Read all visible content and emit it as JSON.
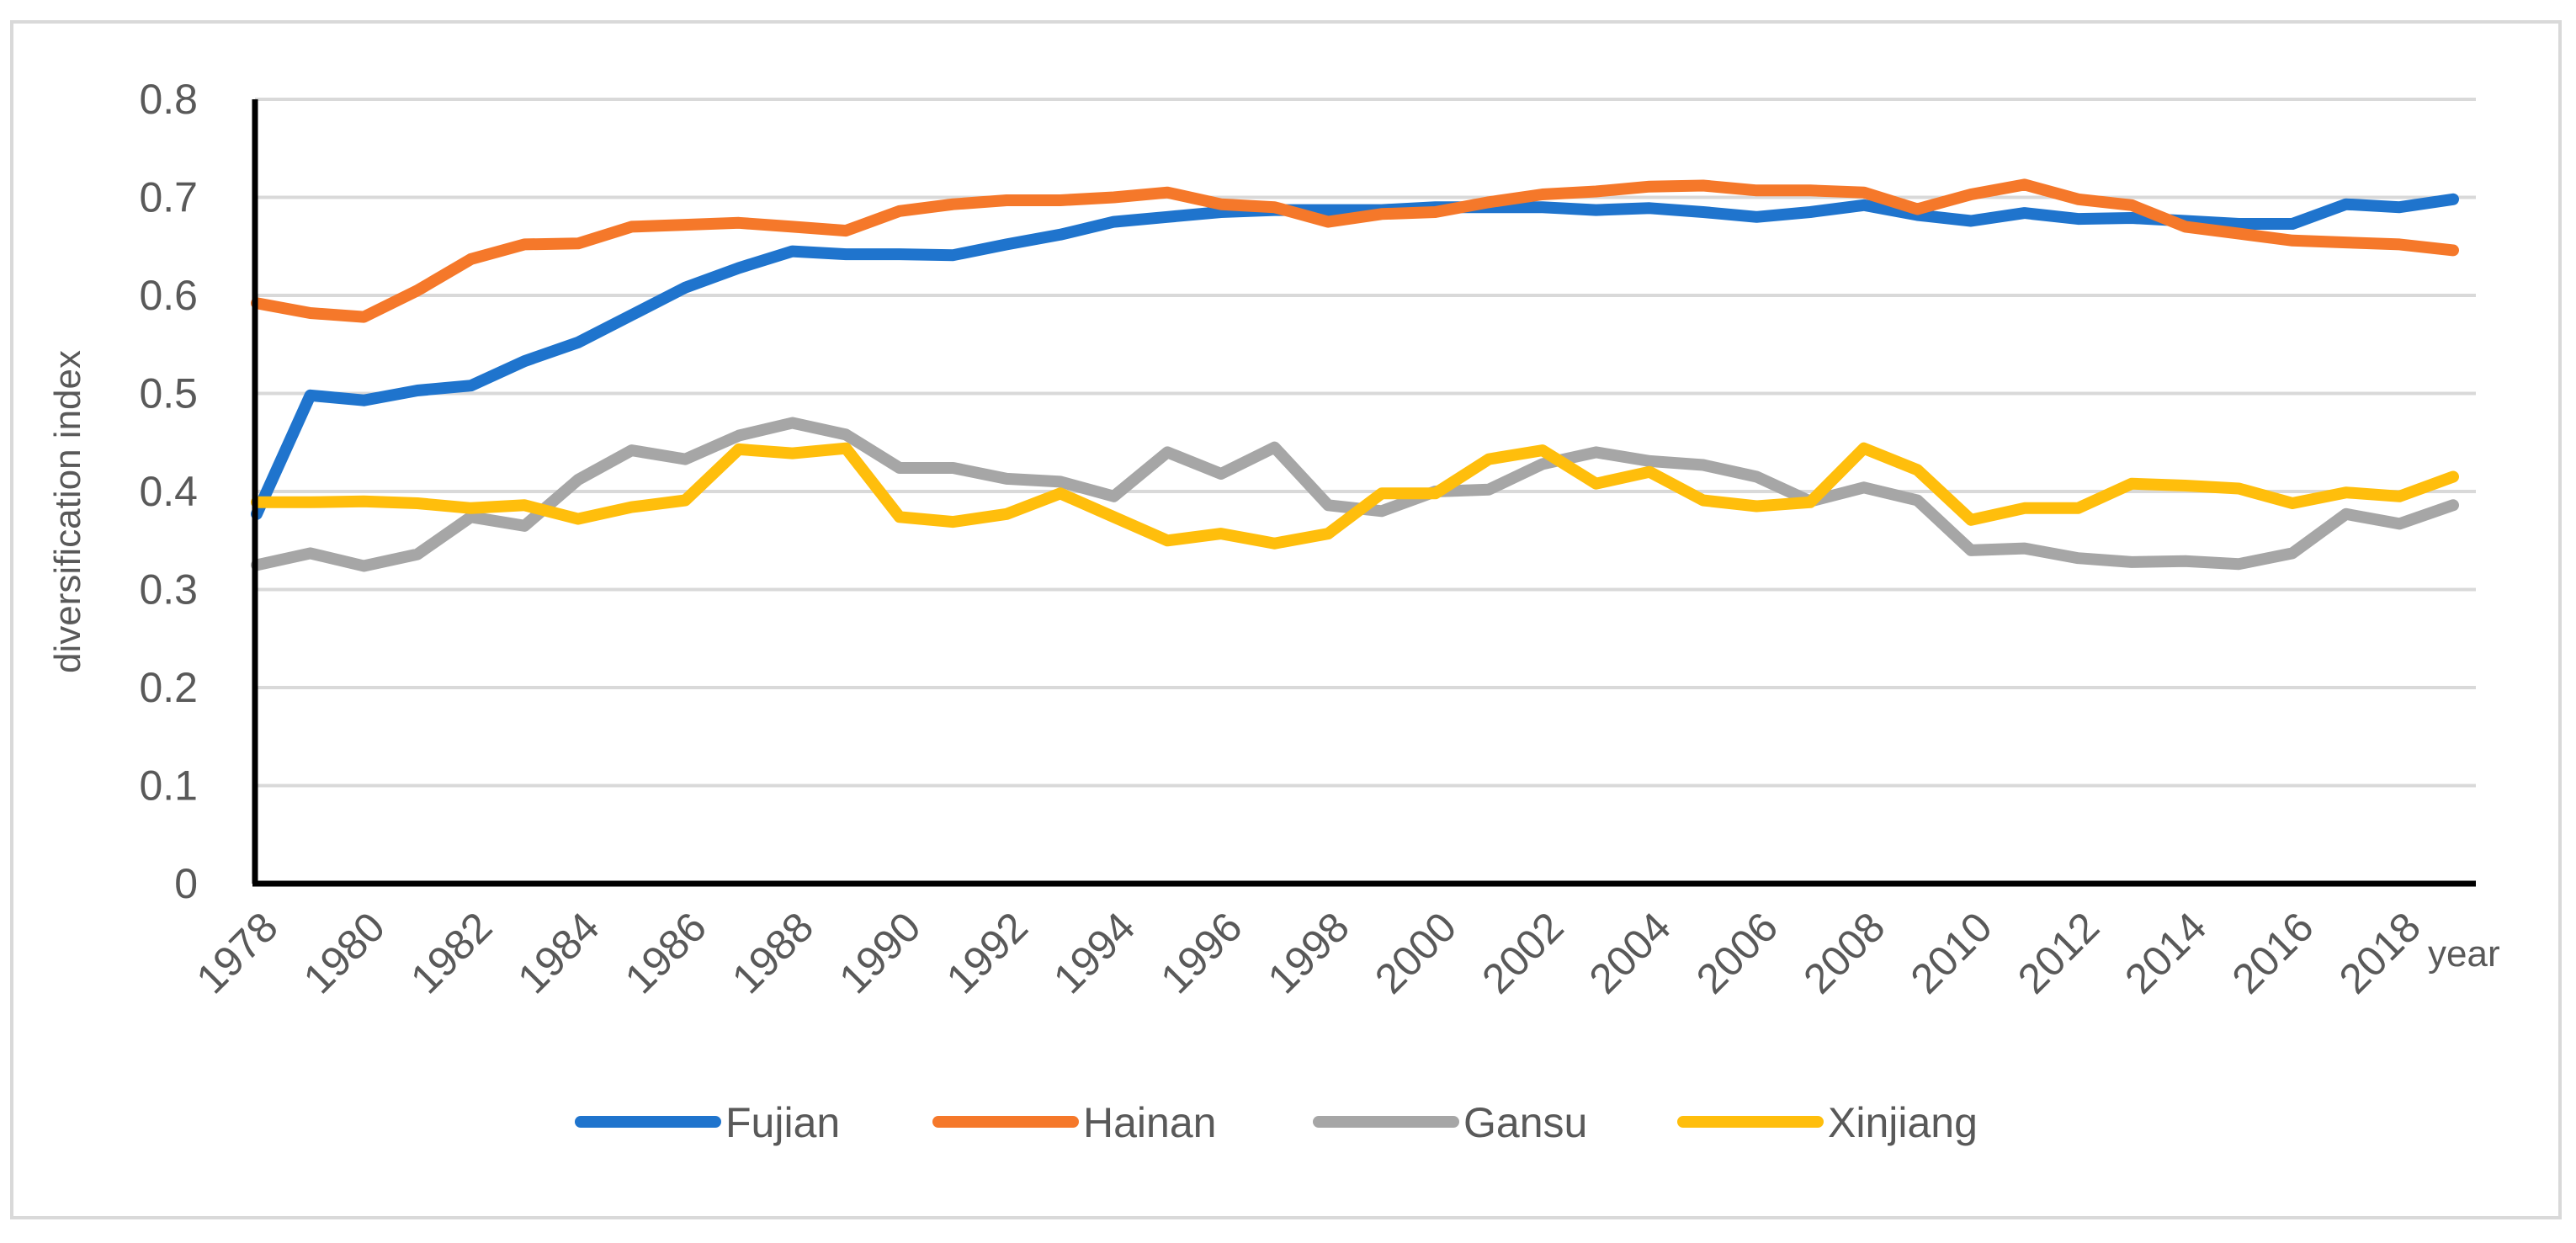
{
  "chart_data": {
    "type": "line",
    "title": "",
    "xlabel": "year",
    "ylabel": "diversification index",
    "ylim": [
      0,
      0.8
    ],
    "yticks": [
      "0",
      "0.1",
      "0.2",
      "0.3",
      "0.4",
      "0.5",
      "0.6",
      "0.7",
      "0.8"
    ],
    "yticks_values": [
      0,
      0.1,
      0.2,
      0.3,
      0.4,
      0.5,
      0.6,
      0.7,
      0.8
    ],
    "xtick_labels": [
      "1978",
      "1980",
      "1982",
      "1984",
      "1986",
      "1988",
      "1990",
      "1992",
      "1994",
      "1996",
      "1998",
      "2000",
      "2002",
      "2004",
      "2006",
      "2008",
      "2010",
      "2012",
      "2014",
      "2016",
      "2018"
    ],
    "grid": "horizontal",
    "legend_position": "bottom",
    "x": [
      1978,
      1979,
      1980,
      1981,
      1982,
      1983,
      1984,
      1985,
      1986,
      1987,
      1988,
      1989,
      1990,
      1991,
      1992,
      1993,
      1994,
      1995,
      1996,
      1997,
      1998,
      1999,
      2000,
      2001,
      2002,
      2003,
      2004,
      2005,
      2006,
      2007,
      2008,
      2009,
      2010,
      2011,
      2012,
      2013,
      2014,
      2015,
      2016,
      2017,
      2018,
      2019
    ],
    "series": [
      {
        "name": "Fujian",
        "color": "#1f74cd",
        "values": [
          0.377,
          0.498,
          0.493,
          0.503,
          0.508,
          0.533,
          0.552,
          0.58,
          0.608,
          0.628,
          0.645,
          0.642,
          0.642,
          0.641,
          0.652,
          0.662,
          0.675,
          0.68,
          0.685,
          0.687,
          0.687,
          0.687,
          0.69,
          0.69,
          0.69,
          0.687,
          0.689,
          0.685,
          0.68,
          0.685,
          0.692,
          0.682,
          0.676,
          0.684,
          0.678,
          0.679,
          0.676,
          0.673,
          0.673,
          0.693,
          0.69,
          0.698
        ]
      },
      {
        "name": "Hainan",
        "color": "#f5782a",
        "values": [
          0.592,
          0.582,
          0.578,
          0.605,
          0.637,
          0.652,
          0.653,
          0.67,
          0.672,
          0.674,
          0.67,
          0.666,
          0.686,
          0.693,
          0.697,
          0.697,
          0.7,
          0.705,
          0.693,
          0.69,
          0.675,
          0.683,
          0.685,
          0.695,
          0.703,
          0.706,
          0.711,
          0.712,
          0.707,
          0.707,
          0.705,
          0.688,
          0.703,
          0.713,
          0.698,
          0.692,
          0.67,
          0.663,
          0.656,
          0.654,
          0.652,
          0.646
        ]
      },
      {
        "name": "Gansu",
        "color": "#a6a6a6",
        "values": [
          0.325,
          0.337,
          0.324,
          0.336,
          0.374,
          0.365,
          0.412,
          0.442,
          0.433,
          0.457,
          0.47,
          0.458,
          0.424,
          0.424,
          0.413,
          0.41,
          0.395,
          0.44,
          0.418,
          0.445,
          0.386,
          0.38,
          0.4,
          0.402,
          0.428,
          0.44,
          0.431,
          0.427,
          0.415,
          0.39,
          0.404,
          0.391,
          0.34,
          0.342,
          0.332,
          0.328,
          0.329,
          0.326,
          0.337,
          0.377,
          0.367,
          0.386
        ]
      },
      {
        "name": "Xinjiang",
        "color": "#ffbe0c",
        "values": [
          0.389,
          0.389,
          0.39,
          0.388,
          0.383,
          0.386,
          0.372,
          0.384,
          0.391,
          0.443,
          0.439,
          0.444,
          0.374,
          0.369,
          0.377,
          0.398,
          0.374,
          0.35,
          0.357,
          0.347,
          0.357,
          0.398,
          0.398,
          0.433,
          0.442,
          0.408,
          0.42,
          0.391,
          0.385,
          0.389,
          0.444,
          0.422,
          0.371,
          0.383,
          0.383,
          0.408,
          0.406,
          0.403,
          0.388,
          0.399,
          0.395,
          0.415
        ]
      }
    ]
  }
}
